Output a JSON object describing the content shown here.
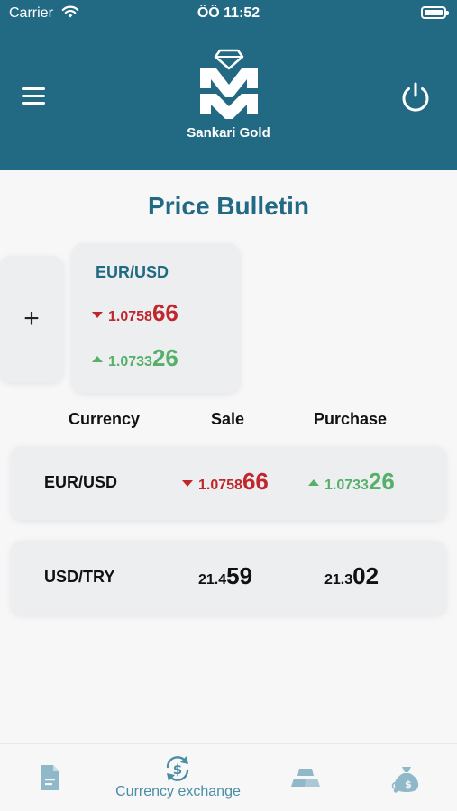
{
  "status_bar": {
    "carrier": "Carrier",
    "time": "ÖÖ 11:52"
  },
  "header": {
    "brand": "Sankari Gold",
    "menu_icon": "hamburger-menu-icon",
    "power_icon": "power-icon"
  },
  "page_title": "Price Bulletin",
  "favorite": {
    "pair": "EUR/USD",
    "sale": {
      "prefix": "1.0758",
      "suffix": "66",
      "trend": "down"
    },
    "purchase": {
      "prefix": "1.0733",
      "suffix": "26",
      "trend": "up"
    }
  },
  "add_button": {
    "label": "+"
  },
  "table": {
    "headers": {
      "currency": "Currency",
      "sale": "Sale",
      "purchase": "Purchase"
    },
    "rows": [
      {
        "pair": "EUR/USD",
        "sale": {
          "prefix": "1.0758",
          "suffix": "66",
          "trend": "down"
        },
        "purchase": {
          "prefix": "1.0733",
          "suffix": "26",
          "trend": "up"
        }
      },
      {
        "pair": "USD/TRY",
        "sale": {
          "prefix": "21.4",
          "suffix": "59",
          "trend": "none"
        },
        "purchase": {
          "prefix": "21.3",
          "suffix": "02",
          "trend": "none"
        }
      }
    ]
  },
  "tab_bar": {
    "tabs": [
      {
        "icon": "document-icon",
        "label": ""
      },
      {
        "icon": "currency-exchange-icon",
        "label": "Currency exchange"
      },
      {
        "icon": "gold-bars-icon",
        "label": ""
      },
      {
        "icon": "money-bag-icon",
        "label": ""
      }
    ]
  },
  "colors": {
    "primary": "#226a84",
    "down": "#c0272d",
    "up": "#56b06a",
    "tab": "#4a8da6"
  }
}
